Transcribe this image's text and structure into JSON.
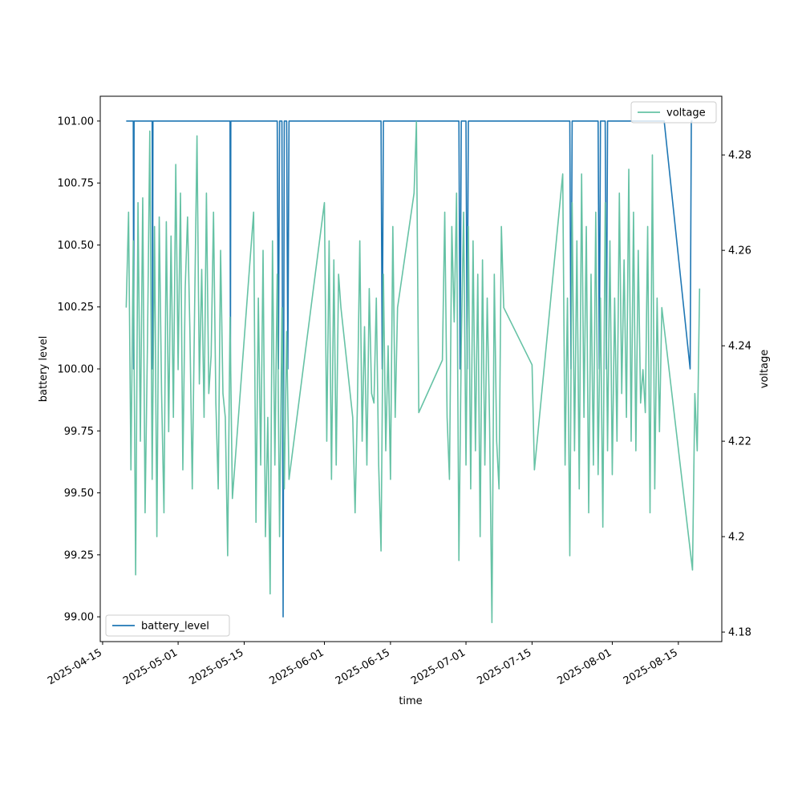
{
  "chart_data": {
    "type": "line",
    "xlabel": "time",
    "ylabel": "battery level",
    "y2label": "voltage",
    "xlim": [
      "2025-04-14T12:00",
      "2025-08-24T05:00"
    ],
    "xticks": [
      "2025-04-15",
      "2025-05-01",
      "2025-05-15",
      "2025-06-01",
      "2025-06-15",
      "2025-07-01",
      "2025-07-15",
      "2025-08-01",
      "2025-08-15"
    ],
    "ylim": [
      98.9,
      101.1
    ],
    "yticks": [
      {
        "value": 99,
        "label": "99.00"
      },
      {
        "value": 99.25,
        "label": "99.25"
      },
      {
        "value": 99.5,
        "label": "99.50"
      },
      {
        "value": 99.75,
        "label": "99.75"
      },
      {
        "value": 100,
        "label": "100.00"
      },
      {
        "value": 100.25,
        "label": "100.25"
      },
      {
        "value": 100.5,
        "label": "100.50"
      },
      {
        "value": 100.75,
        "label": "100.75"
      },
      {
        "value": 101,
        "label": "101.00"
      }
    ],
    "y2lim": [
      4.178,
      4.2923
    ],
    "y2ticks": [
      4.18,
      4.2,
      4.22,
      4.24,
      4.26,
      4.28
    ],
    "series": [
      {
        "name": "battery_level",
        "color": "#1f77b4",
        "axis": "y",
        "legend": "lower left",
        "x": [
          "2025-04-20T00:00",
          "2025-04-21T12:00",
          "2025-04-21T14:00",
          "2025-04-21T16:00",
          "2025-04-25T12:00",
          "2025-04-25T14:00",
          "2025-04-25T16:00",
          "2025-05-12T00:00",
          "2025-05-12T02:00",
          "2025-05-12T04:00",
          "2025-05-22T00:00",
          "2025-05-22T06:00",
          "2025-05-22T12:00",
          "2025-05-23T00:00",
          "2025-05-23T06:00",
          "2025-05-23T12:00",
          "2025-05-24T00:00",
          "2025-05-24T06:00",
          "2025-05-24T12:00",
          "2025-06-13T00:00",
          "2025-06-13T06:00",
          "2025-06-13T12:00",
          "2025-06-29T12:00",
          "2025-06-29T18:00",
          "2025-06-30T00:00",
          "2025-07-01T00:00",
          "2025-07-01T06:00",
          "2025-07-01T12:00",
          "2025-07-23T00:00",
          "2025-07-23T06:00",
          "2025-07-23T12:00",
          "2025-07-29T00:00",
          "2025-07-29T06:00",
          "2025-07-29T12:00",
          "2025-07-30T12:00",
          "2025-07-30T18:00",
          "2025-07-31T00:00",
          "2025-08-12T00:00",
          "2025-08-17T12:00",
          "2025-08-17T18:00",
          "2025-08-18T00:00"
        ],
        "values": [
          101,
          101,
          100,
          101,
          101,
          100,
          101,
          101,
          100,
          101,
          101,
          100,
          101,
          101,
          99,
          101,
          101,
          100,
          101,
          101,
          100,
          101,
          101,
          100,
          101,
          101,
          100,
          101,
          101,
          100,
          101,
          101,
          100,
          101,
          101,
          100,
          101,
          101,
          100,
          101,
          101
        ]
      },
      {
        "name": "voltage",
        "color": "#66c2a5",
        "axis": "y2",
        "legend": "upper right",
        "x": [
          "2025-04-20T00:00",
          "2025-04-20T12:00",
          "2025-04-21T00:00",
          "2025-04-21T12:00",
          "2025-04-22T00:00",
          "2025-04-22T12:00",
          "2025-04-23T00:00",
          "2025-04-23T12:00",
          "2025-04-24T00:00",
          "2025-04-24T12:00",
          "2025-04-25T00:00",
          "2025-04-25T12:00",
          "2025-04-26T00:00",
          "2025-04-26T12:00",
          "2025-04-27T00:00",
          "2025-04-27T12:00",
          "2025-04-28T00:00",
          "2025-04-28T12:00",
          "2025-04-29T00:00",
          "2025-04-29T12:00",
          "2025-04-30T00:00",
          "2025-04-30T12:00",
          "2025-05-01T00:00",
          "2025-05-01T12:00",
          "2025-05-02T00:00",
          "2025-05-02T12:00",
          "2025-05-03T00:00",
          "2025-05-03T12:00",
          "2025-05-04T00:00",
          "2025-05-04T12:00",
          "2025-05-05T00:00",
          "2025-05-05T12:00",
          "2025-05-06T00:00",
          "2025-05-06T12:00",
          "2025-05-07T00:00",
          "2025-05-07T12:00",
          "2025-05-08T00:00",
          "2025-05-08T12:00",
          "2025-05-09T00:00",
          "2025-05-09T12:00",
          "2025-05-10T00:00",
          "2025-05-10T12:00",
          "2025-05-11T00:00",
          "2025-05-11T12:00",
          "2025-05-12T00:00",
          "2025-05-12T12:00",
          "2025-05-17T00:00",
          "2025-05-17T12:00",
          "2025-05-18T00:00",
          "2025-05-18T12:00",
          "2025-05-19T00:00",
          "2025-05-19T12:00",
          "2025-05-20T00:00",
          "2025-05-20T12:00",
          "2025-05-21T00:00",
          "2025-05-21T12:00",
          "2025-05-22T00:00",
          "2025-05-22T12:00",
          "2025-05-23T00:00",
          "2025-05-23T12:00",
          "2025-05-24T00:00",
          "2025-05-24T12:00",
          "2025-06-01T00:00",
          "2025-06-01T12:00",
          "2025-06-02T00:00",
          "2025-06-02T12:00",
          "2025-06-03T00:00",
          "2025-06-03T12:00",
          "2025-06-04T00:00",
          "2025-06-04T12:00",
          "2025-06-07T00:00",
          "2025-06-07T12:00",
          "2025-06-08T00:00",
          "2025-06-08T12:00",
          "2025-06-09T00:00",
          "2025-06-09T12:00",
          "2025-06-10T00:00",
          "2025-06-10T12:00",
          "2025-06-11T00:00",
          "2025-06-11T12:00",
          "2025-06-12T00:00",
          "2025-06-12T12:00",
          "2025-06-13T00:00",
          "2025-06-13T12:00",
          "2025-06-14T00:00",
          "2025-06-14T12:00",
          "2025-06-15T00:00",
          "2025-06-15T12:00",
          "2025-06-16T00:00",
          "2025-06-16T12:00",
          "2025-06-20T00:00",
          "2025-06-20T12:00",
          "2025-06-21T00:00",
          "2025-06-26T00:00",
          "2025-06-26T12:00",
          "2025-06-27T00:00",
          "2025-06-27T12:00",
          "2025-06-28T00:00",
          "2025-06-28T12:00",
          "2025-06-29T00:00",
          "2025-06-29T12:00",
          "2025-06-30T00:00",
          "2025-06-30T12:00",
          "2025-07-01T00:00",
          "2025-07-01T12:00",
          "2025-07-02T00:00",
          "2025-07-02T12:00",
          "2025-07-03T00:00",
          "2025-07-03T12:00",
          "2025-07-04T00:00",
          "2025-07-04T12:00",
          "2025-07-05T00:00",
          "2025-07-05T12:00",
          "2025-07-06T00:00",
          "2025-07-06T12:00",
          "2025-07-07T00:00",
          "2025-07-07T12:00",
          "2025-07-08T00:00",
          "2025-07-08T12:00",
          "2025-07-09T00:00",
          "2025-07-15T00:00",
          "2025-07-15T12:00",
          "2025-07-21T12:00",
          "2025-07-22T00:00",
          "2025-07-22T12:00",
          "2025-07-23T00:00",
          "2025-07-23T12:00",
          "2025-07-24T00:00",
          "2025-07-24T12:00",
          "2025-07-25T00:00",
          "2025-07-25T12:00",
          "2025-07-26T00:00",
          "2025-07-26T12:00",
          "2025-07-27T00:00",
          "2025-07-27T12:00",
          "2025-07-28T00:00",
          "2025-07-28T12:00",
          "2025-07-29T00:00",
          "2025-07-29T12:00",
          "2025-07-30T00:00",
          "2025-07-30T12:00",
          "2025-07-31T00:00",
          "2025-07-31T12:00",
          "2025-08-01T00:00",
          "2025-08-01T12:00",
          "2025-08-02T00:00",
          "2025-08-02T12:00",
          "2025-08-03T00:00",
          "2025-08-03T12:00",
          "2025-08-04T00:00",
          "2025-08-04T12:00",
          "2025-08-05T00:00",
          "2025-08-05T12:00",
          "2025-08-06T00:00",
          "2025-08-06T12:00",
          "2025-08-07T00:00",
          "2025-08-07T12:00",
          "2025-08-08T00:00",
          "2025-08-08T12:00",
          "2025-08-09T00:00",
          "2025-08-09T12:00",
          "2025-08-10T00:00",
          "2025-08-10T12:00",
          "2025-08-11T00:00",
          "2025-08-11T12:00",
          "2025-08-18T00:00",
          "2025-08-18T12:00",
          "2025-08-19T00:00",
          "2025-08-19T12:00"
        ],
        "values": [
          4.248,
          4.268,
          4.214,
          4.262,
          4.192,
          4.27,
          4.22,
          4.271,
          4.205,
          4.24,
          4.285,
          4.212,
          4.265,
          4.2,
          4.267,
          4.23,
          4.205,
          4.266,
          4.222,
          4.263,
          4.225,
          4.278,
          4.235,
          4.272,
          4.214,
          4.252,
          4.267,
          4.243,
          4.21,
          4.248,
          4.284,
          4.232,
          4.256,
          4.225,
          4.272,
          4.23,
          4.238,
          4.268,
          4.228,
          4.21,
          4.26,
          4.23,
          4.225,
          4.196,
          4.246,
          4.208,
          4.268,
          4.203,
          4.25,
          4.215,
          4.26,
          4.2,
          4.225,
          4.188,
          4.262,
          4.215,
          4.255,
          4.2,
          4.248,
          4.21,
          4.243,
          4.212,
          4.27,
          4.22,
          4.262,
          4.212,
          4.258,
          4.215,
          4.255,
          4.248,
          4.225,
          4.205,
          4.228,
          4.262,
          4.22,
          4.244,
          4.215,
          4.252,
          4.23,
          4.228,
          4.25,
          4.215,
          4.197,
          4.255,
          4.218,
          4.24,
          4.212,
          4.265,
          4.225,
          4.248,
          4.272,
          4.287,
          4.226,
          4.237,
          4.268,
          4.225,
          4.212,
          4.265,
          4.245,
          4.272,
          4.195,
          4.24,
          4.268,
          4.215,
          4.265,
          4.21,
          4.262,
          4.218,
          4.255,
          4.2,
          4.258,
          4.215,
          4.25,
          4.224,
          4.182,
          4.255,
          4.22,
          4.21,
          4.265,
          4.248,
          4.236,
          4.214,
          4.276,
          4.215,
          4.25,
          4.196,
          4.27,
          4.218,
          4.262,
          4.21,
          4.276,
          4.225,
          4.265,
          4.205,
          4.255,
          4.215,
          4.268,
          4.213,
          4.25,
          4.202,
          4.27,
          4.218,
          4.262,
          4.213,
          4.25,
          4.22,
          4.272,
          4.23,
          4.258,
          4.225,
          4.277,
          4.22,
          4.268,
          4.218,
          4.26,
          4.228,
          4.235,
          4.226,
          4.265,
          4.205,
          4.28,
          4.21,
          4.25,
          4.222,
          4.248,
          4.193,
          4.23,
          4.218,
          4.252
        ]
      }
    ]
  }
}
